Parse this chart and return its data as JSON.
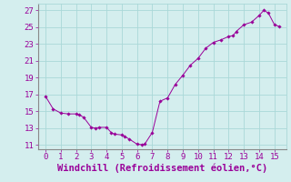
{
  "x": [
    0,
    0.5,
    1,
    1.5,
    2,
    2.2,
    2.5,
    3,
    3.3,
    3.5,
    4,
    4.3,
    4.5,
    5,
    5.2,
    5.5,
    6,
    6.3,
    6.5,
    7,
    7.5,
    8,
    8.5,
    9,
    9.5,
    10,
    10.5,
    11,
    11.5,
    12,
    12.3,
    12.5,
    13,
    13.5,
    14,
    14.3,
    14.6,
    15,
    15.3
  ],
  "y": [
    16.8,
    15.3,
    14.8,
    14.7,
    14.7,
    14.6,
    14.3,
    13.1,
    13.0,
    13.1,
    13.1,
    12.5,
    12.3,
    12.2,
    12.0,
    11.7,
    11.1,
    11.05,
    11.1,
    12.5,
    16.2,
    16.6,
    18.2,
    19.3,
    20.5,
    21.3,
    22.5,
    23.2,
    23.5,
    23.9,
    24.0,
    24.5,
    25.3,
    25.6,
    26.4,
    27.0,
    26.7,
    25.3,
    25.1
  ],
  "line_color": "#990099",
  "marker": "D",
  "marker_size": 1.8,
  "bg_color": "#d4eeee",
  "grid_color": "#aad8d8",
  "xlabel": "Windchill (Refroidissement éolien,°C)",
  "xlabel_color": "#990099",
  "xlabel_fontsize": 7.5,
  "tick_color": "#990099",
  "tick_fontsize": 6.5,
  "xlim": [
    -0.5,
    15.8
  ],
  "ylim": [
    10.5,
    27.8
  ],
  "yticks": [
    11,
    13,
    15,
    17,
    19,
    21,
    23,
    25,
    27
  ],
  "xticks": [
    0,
    1,
    2,
    3,
    4,
    5,
    6,
    7,
    8,
    9,
    10,
    11,
    12,
    13,
    14,
    15
  ]
}
